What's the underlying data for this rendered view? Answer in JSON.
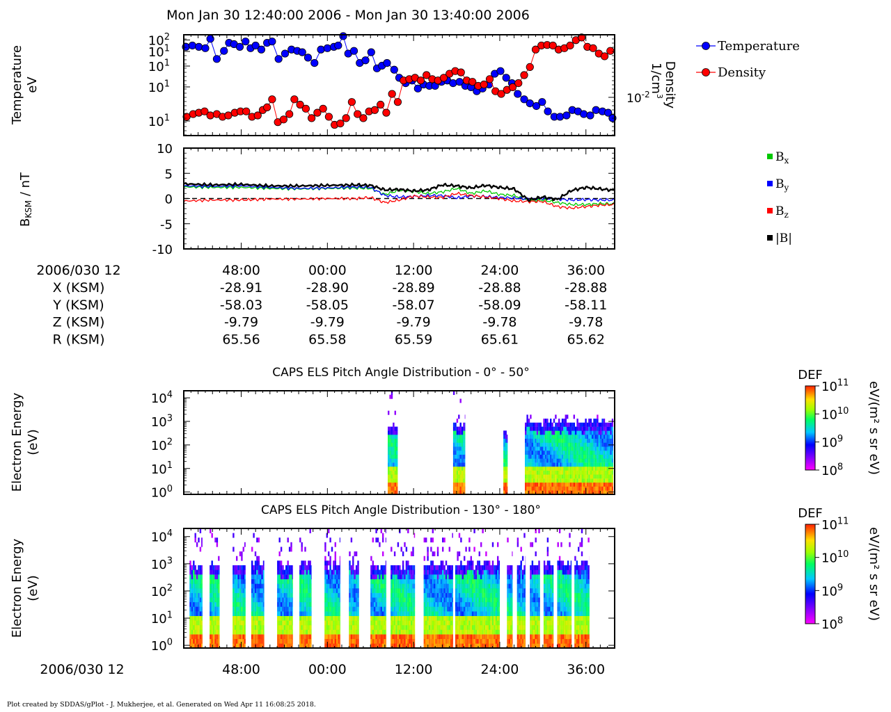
{
  "title": "Mon Jan 30 12:40:00 2006 - Mon Jan 30 13:40:00 2006",
  "footer": "Plot created by SDDAS/gPlot - J. Mukherjee, et al.  Generated on Wed Apr 11 16:08:25 2018.",
  "colors": {
    "temperature": "#0000ff",
    "density": "#ff0000",
    "bx": "#00c800",
    "by": "#0000ff",
    "bz": "#ff0000",
    "btot": "#000000"
  },
  "icons": [
    "legend-circle-marker",
    "legend-square-marker",
    "colorbar-rainbow"
  ],
  "chart_data": [
    {
      "type": "scatter",
      "name": "plasma-moments",
      "ylabel_lines": [
        "Temperature",
        "eV"
      ],
      "ylabel2_lines": [
        "Density",
        "1/cm"
      ],
      "ylabel2_superscript": "3",
      "yticks_left": [
        {
          "base": "10",
          "exp": "2",
          "y": 57.5
        },
        {
          "base": "10",
          "exp": "1",
          "y": 74
        },
        {
          "base": "10",
          "exp": "1",
          "y": 95
        },
        {
          "base": "10",
          "exp": "1",
          "y": 125
        },
        {
          "base": "10",
          "exp": "1",
          "y": 174
        }
      ],
      "ytick_right": {
        "base": "10",
        "exp": "-2",
        "y": 140
      },
      "xlim_minutes": [
        40,
        100
      ],
      "ylim_log10": [
        -1.75,
        2.0
      ],
      "legend": {
        "placement": "right",
        "entries": [
          "Temperature",
          "Density"
        ]
      },
      "series": [
        {
          "name": "Temperature",
          "x": [
            40.3,
            41.2,
            42.1,
            43.0,
            43.7,
            44.6,
            45.6,
            46.3,
            47.0,
            47.8,
            48.6,
            49.3,
            50.0,
            50.8,
            51.6,
            52.3,
            53.2,
            54.1,
            55.0,
            55.8,
            56.5,
            57.3,
            58.2,
            59.1,
            60.0,
            60.9,
            61.5,
            62.2,
            62.9,
            63.7,
            64.5,
            65.3,
            66.1,
            66.9,
            67.6,
            68.3,
            69.3,
            70.0,
            70.9,
            71.8,
            72.6,
            73.4,
            74.2,
            75.0,
            75.9,
            76.7,
            77.5,
            78.4,
            79.2,
            80.0,
            80.8,
            81.6,
            82.5,
            83.3,
            84.1,
            84.9,
            85.7,
            86.5,
            87.4,
            88.2,
            89.1,
            89.9,
            90.7,
            91.6,
            92.4,
            93.3,
            94.1,
            94.9,
            95.7,
            96.6,
            97.4,
            98.3,
            99.1,
            99.7
          ],
          "y": [
            1.55,
            1.6,
            1.55,
            1.5,
            1.85,
            1.1,
            1.4,
            1.7,
            1.65,
            1.55,
            1.75,
            1.5,
            1.6,
            1.45,
            1.7,
            1.75,
            1.1,
            1.3,
            1.45,
            1.4,
            1.35,
            1.15,
            0.95,
            1.45,
            1.5,
            1.55,
            1.6,
            1.95,
            1.3,
            1.4,
            0.95,
            1.05,
            1.35,
            0.75,
            0.85,
            0.95,
            0.7,
            0.4,
            0.2,
            0.3,
            0.0,
            0.15,
            0.1,
            0.1,
            0.25,
            0.3,
            0.2,
            0.25,
            0.1,
            0.05,
            -0.1,
            0.0,
            0.15,
            0.55,
            0.65,
            0.4,
            0.2,
            -0.2,
            -0.4,
            -0.55,
            -0.65,
            -0.5,
            -0.85,
            -1.05,
            -1.05,
            -1.0,
            -0.8,
            -0.85,
            -0.95,
            -1.0,
            -0.8,
            -0.85,
            -0.9,
            -1.1
          ],
          "color": "#0000ff"
        },
        {
          "name": "Density",
          "x": [
            40.4,
            41.3,
            42.1,
            42.9,
            43.7,
            44.6,
            45.4,
            46.2,
            47.1,
            47.9,
            48.7,
            49.5,
            50.3,
            51.0,
            51.6,
            52.3,
            53.1,
            53.9,
            54.7,
            55.4,
            56.2,
            57.0,
            57.8,
            58.6,
            59.4,
            60.2,
            61.0,
            61.8,
            62.6,
            63.4,
            64.2,
            65.0,
            65.8,
            66.6,
            67.4,
            68.2,
            69.0,
            69.8,
            70.6,
            71.4,
            72.2,
            73.0,
            73.8,
            74.6,
            75.4,
            76.2,
            77.0,
            77.8,
            78.6,
            79.4,
            80.2,
            81.0,
            81.8,
            82.6,
            83.4,
            84.2,
            85.0,
            85.8,
            86.6,
            87.4,
            88.2,
            89.0,
            89.8,
            90.6,
            91.4,
            92.2,
            93.0,
            93.8,
            94.6,
            95.4,
            96.2,
            97.0,
            97.8,
            98.6,
            99.4
          ],
          "y": [
            -1.05,
            -0.95,
            -0.9,
            -0.85,
            -1.0,
            -0.95,
            -1.05,
            -1.0,
            -0.9,
            -0.85,
            -0.85,
            -1.05,
            -1.0,
            -0.8,
            -0.7,
            -0.4,
            -1.25,
            -1.15,
            -0.95,
            -0.4,
            -0.6,
            -0.75,
            -1.1,
            -0.9,
            -0.75,
            -1.05,
            -1.35,
            -1.3,
            -1.1,
            -0.5,
            -0.95,
            -1.1,
            -0.85,
            -0.8,
            -0.6,
            -0.9,
            -0.2,
            -0.5,
            0.3,
            0.35,
            0.4,
            0.3,
            0.5,
            0.35,
            0.3,
            0.4,
            0.55,
            0.65,
            0.6,
            0.3,
            0.25,
            0.1,
            0.15,
            0.35,
            -0.1,
            -0.2,
            -0.05,
            0.05,
            0.2,
            0.5,
            0.8,
            1.45,
            1.6,
            1.62,
            1.6,
            1.45,
            1.5,
            1.6,
            1.8,
            1.9,
            1.55,
            1.5,
            1.3,
            1.2,
            1.4
          ],
          "color": "#ff0000"
        }
      ]
    },
    {
      "type": "line",
      "name": "magnetic-field",
      "ylabel": "B",
      "ylabel_subscript": "KSM",
      "ylabel_suffix": " / nT",
      "ylim": [
        -10,
        10
      ],
      "yticks": [
        10,
        5,
        0,
        -5,
        -10
      ],
      "xlim_minutes": [
        40,
        100
      ],
      "zero_line": "dashed",
      "legend": {
        "placement": "right",
        "entries": [
          {
            "base": "B",
            "sub": "x"
          },
          {
            "base": "B",
            "sub": "y"
          },
          {
            "base": "B",
            "sub": "z"
          },
          {
            "base": "|B|",
            "sub": ""
          }
        ]
      },
      "series": [
        {
          "name": "Bx",
          "x": [
            40,
            44,
            48,
            52,
            56,
            60,
            64,
            66,
            68,
            70,
            72,
            74,
            76,
            78,
            80,
            82,
            84,
            86,
            88,
            90,
            92,
            94,
            96,
            98,
            100
          ],
          "y": [
            2.3,
            2.2,
            2.2,
            2.0,
            1.9,
            2.0,
            2.1,
            2.0,
            0.8,
            1.6,
            1.4,
            1.0,
            1.3,
            2.0,
            1.0,
            1.5,
            0.8,
            0.6,
            -0.4,
            -0.3,
            -0.8,
            -1.2,
            -1.2,
            -1.0,
            -1.1
          ],
          "color": "#00c800"
        },
        {
          "name": "By",
          "x": [
            40,
            44,
            48,
            52,
            56,
            60,
            64,
            66,
            68,
            70,
            72,
            74,
            76,
            78,
            80,
            82,
            84,
            86,
            88,
            90,
            92,
            94,
            96,
            98,
            100
          ],
          "y": [
            2.5,
            2.4,
            2.5,
            2.2,
            2.0,
            2.1,
            2.3,
            2.2,
            0.6,
            0.3,
            0.4,
            0.6,
            0.6,
            0.1,
            0.5,
            0.4,
            0.2,
            0.1,
            -0.1,
            0.0,
            -0.1,
            -0.3,
            -0.2,
            -0.3,
            -0.3
          ],
          "color": "#0000ff"
        },
        {
          "name": "Bz",
          "x": [
            40,
            44,
            48,
            50,
            52,
            56,
            60,
            64,
            66,
            68,
            70,
            72,
            74,
            76,
            78,
            80,
            82,
            84,
            86,
            88,
            90,
            92,
            94,
            96,
            98,
            100
          ],
          "y": [
            -0.5,
            -0.3,
            -0.3,
            -0.2,
            -0.1,
            -0.1,
            0.0,
            0.0,
            0.2,
            -0.8,
            -0.3,
            0.5,
            0.3,
            0.2,
            1.0,
            0.6,
            0.3,
            0.0,
            -0.5,
            -0.6,
            -0.6,
            -1.6,
            -1.9,
            -1.6,
            -1.3,
            -1.2
          ],
          "color": "#ff0000"
        },
        {
          "name": "|B|",
          "x": [
            40,
            44,
            48,
            52,
            56,
            60,
            64,
            66,
            68,
            70,
            72,
            74,
            76,
            78,
            80,
            82,
            84,
            86,
            88,
            90,
            92,
            94,
            96,
            98,
            100
          ],
          "y": [
            2.9,
            2.7,
            2.8,
            2.5,
            2.5,
            2.6,
            2.7,
            2.6,
            1.7,
            1.8,
            1.5,
            1.7,
            2.7,
            2.5,
            2.1,
            2.6,
            2.2,
            1.9,
            -0.3,
            0.3,
            -0.2,
            1.6,
            2.2,
            1.9,
            1.6
          ],
          "color": "#000000"
        }
      ]
    },
    {
      "type": "table",
      "name": "ephemeris",
      "date_label": "2006/030 12",
      "time_ticks": [
        "48:00",
        "00:00",
        "12:00",
        "24:00",
        "36:00"
      ],
      "rows": [
        {
          "label": "X (KSM)",
          "values": [
            "-28.91",
            "-28.90",
            "-28.89",
            "-28.88",
            "-28.88"
          ]
        },
        {
          "label": "Y (KSM)",
          "values": [
            "-58.03",
            "-58.05",
            "-58.07",
            "-58.09",
            "-58.11"
          ]
        },
        {
          "label": "Z (KSM)",
          "values": [
            "-9.79",
            "-9.79",
            "-9.79",
            "-9.78",
            "-9.78"
          ]
        },
        {
          "label": "R (KSM)",
          "values": [
            "65.56",
            "65.58",
            "65.59",
            "65.61",
            "65.62"
          ]
        }
      ]
    },
    {
      "type": "heatmap",
      "name": "pitch-angle-0-50",
      "title": "CAPS ELS Pitch Angle Distribution - 0° - 50°",
      "ylabel_lines": [
        "Electron Energy",
        "(eV)"
      ],
      "yticks": [
        {
          "base": "10",
          "exp": "4"
        },
        {
          "base": "10",
          "exp": "3"
        },
        {
          "base": "10",
          "exp": "2"
        },
        {
          "base": "10",
          "exp": "1"
        },
        {
          "base": "10",
          "exp": "0"
        }
      ],
      "ylim_log10_eV": [
        -0.1,
        4.3
      ],
      "xlim_minutes": [
        40,
        100
      ],
      "colorbar": {
        "label": "DEF",
        "units": "eV/(m² s sr eV)",
        "ticks": [
          {
            "base": "10",
            "exp": "11"
          },
          {
            "base": "10",
            "exp": "10"
          },
          {
            "base": "10",
            "exp": "9"
          },
          {
            "base": "10",
            "exp": "8"
          }
        ],
        "range_log10": [
          8,
          11
        ]
      },
      "segments": [
        {
          "start": 68.4,
          "end": 69.8,
          "top_log10": 2.8,
          "sparse_top_log10": 4.2
        },
        {
          "start": 77.5,
          "end": 79.2,
          "top_log10": 2.8,
          "sparse_top_log10": 4.3
        },
        {
          "start": 84.5,
          "end": 85.1,
          "top_log10": 2.4,
          "sparse_top_log10": 2.6
        },
        {
          "start": 87.5,
          "end": 99.8,
          "top_log10": 2.9,
          "sparse_top_log10": 3.2
        }
      ]
    },
    {
      "type": "heatmap",
      "name": "pitch-angle-130-180",
      "title": "CAPS ELS Pitch Angle Distribution - 130° - 180°",
      "ylabel_lines": [
        "Electron Energy",
        "(eV)"
      ],
      "yticks": [
        {
          "base": "10",
          "exp": "4"
        },
        {
          "base": "10",
          "exp": "3"
        },
        {
          "base": "10",
          "exp": "2"
        },
        {
          "base": "10",
          "exp": "1"
        },
        {
          "base": "10",
          "exp": "0"
        }
      ],
      "ylim_log10_eV": [
        -0.1,
        4.3
      ],
      "xlim_minutes": [
        40,
        100
      ],
      "colorbar": {
        "label": "DEF",
        "units": "eV/(m² s sr eV)",
        "ticks": [
          {
            "base": "10",
            "exp": "11"
          },
          {
            "base": "10",
            "exp": "10"
          },
          {
            "base": "10",
            "exp": "9"
          },
          {
            "base": "10",
            "exp": "8"
          }
        ],
        "range_log10": [
          8,
          11
        ]
      },
      "xaxis": {
        "date_label": "2006/030 12",
        "time_ticks": [
          "48:00",
          "00:00",
          "12:00",
          "24:00",
          "36:00"
        ]
      },
      "segments": [
        {
          "start": 40.8,
          "end": 42.6
        },
        {
          "start": 43.6,
          "end": 45.0
        },
        {
          "start": 46.8,
          "end": 48.6
        },
        {
          "start": 49.4,
          "end": 51.2
        },
        {
          "start": 53.0,
          "end": 55.2
        },
        {
          "start": 56.1,
          "end": 57.8
        },
        {
          "start": 59.6,
          "end": 61.8
        },
        {
          "start": 63.0,
          "end": 64.4
        },
        {
          "start": 66.0,
          "end": 68.2
        },
        {
          "start": 68.8,
          "end": 72.2
        },
        {
          "start": 73.4,
          "end": 77.5
        },
        {
          "start": 77.8,
          "end": 84.0
        },
        {
          "start": 85.0,
          "end": 85.8
        },
        {
          "start": 86.4,
          "end": 87.6
        },
        {
          "start": 88.2,
          "end": 89.6
        },
        {
          "start": 90.1,
          "end": 91.5
        },
        {
          "start": 92.0,
          "end": 94.0
        },
        {
          "start": 94.4,
          "end": 96.5
        }
      ]
    }
  ]
}
